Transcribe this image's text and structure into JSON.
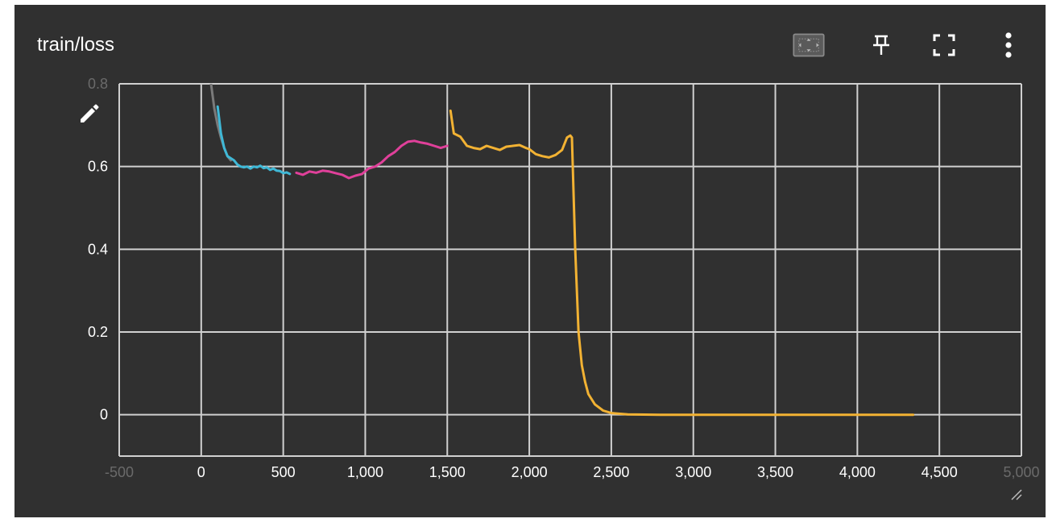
{
  "card": {
    "title": "train/loss"
  },
  "toolbar": {
    "buttons": [
      {
        "name": "fit-domain-button",
        "icon": "fit-domain-icon"
      },
      {
        "name": "pin-button",
        "icon": "pin-icon"
      },
      {
        "name": "fullscreen-button",
        "icon": "fullscreen-icon"
      },
      {
        "name": "more-options-button",
        "icon": "more-vert-icon"
      }
    ]
  },
  "colors": {
    "card_bg": "#303030",
    "grid": "#d0d0d0",
    "run_gray": "#7a7a7a",
    "run_cyan": "#3fb8d6",
    "run_pink": "#e0409a",
    "run_orange": "#f2b233"
  },
  "chart_data": {
    "type": "line",
    "title": "train/loss",
    "xlabel": "",
    "ylabel": "",
    "xlim": [
      -500,
      5000
    ],
    "ylim": [
      -0.1,
      0.8
    ],
    "grid": true,
    "x_ticks": [
      "-500",
      "0",
      "500",
      "1,000",
      "1,500",
      "2,000",
      "2,500",
      "3,000",
      "3,500",
      "4,000",
      "4,500",
      "5,000"
    ],
    "y_ticks": [
      "0",
      "0.2",
      "0.4",
      "0.6",
      "0.8"
    ],
    "series": [
      {
        "color": "#7a7a7a",
        "x": [
          60,
          80,
          100,
          120,
          140,
          160,
          180
        ],
        "y": [
          0.8,
          0.74,
          0.7,
          0.67,
          0.645,
          0.625,
          0.615
        ]
      },
      {
        "color": "#3fb8d6",
        "x": [
          100,
          120,
          140,
          160,
          180,
          200,
          220,
          240,
          260,
          280,
          300,
          320,
          340,
          360,
          380,
          400,
          420,
          440,
          460,
          480,
          500,
          520,
          540
        ],
        "y": [
          0.745,
          0.68,
          0.645,
          0.625,
          0.62,
          0.615,
          0.605,
          0.6,
          0.598,
          0.6,
          0.595,
          0.6,
          0.598,
          0.602,
          0.596,
          0.598,
          0.592,
          0.595,
          0.59,
          0.589,
          0.584,
          0.586,
          0.582
        ]
      },
      {
        "color": "#e0409a",
        "x": [
          580,
          620,
          660,
          700,
          740,
          780,
          820,
          860,
          900,
          940,
          980,
          1020,
          1060,
          1100,
          1140,
          1180,
          1220,
          1260,
          1300,
          1340,
          1380,
          1420,
          1460,
          1500
        ],
        "y": [
          0.585,
          0.58,
          0.588,
          0.585,
          0.59,
          0.588,
          0.584,
          0.58,
          0.572,
          0.578,
          0.582,
          0.595,
          0.6,
          0.61,
          0.625,
          0.635,
          0.65,
          0.66,
          0.662,
          0.658,
          0.655,
          0.65,
          0.645,
          0.65
        ]
      },
      {
        "color": "#f2b233",
        "x": [
          1520,
          1540,
          1580,
          1620,
          1660,
          1700,
          1740,
          1780,
          1820,
          1860,
          1900,
          1940,
          1980,
          2000,
          2040,
          2080,
          2120,
          2160,
          2200,
          2230,
          2250,
          2260,
          2280,
          2300,
          2320,
          2340,
          2360,
          2400,
          2450,
          2500,
          2600,
          2800,
          3000,
          3500,
          4000,
          4340
        ],
        "y": [
          0.735,
          0.68,
          0.672,
          0.65,
          0.645,
          0.642,
          0.65,
          0.645,
          0.64,
          0.648,
          0.65,
          0.652,
          0.645,
          0.642,
          0.63,
          0.625,
          0.622,
          0.628,
          0.64,
          0.67,
          0.675,
          0.67,
          0.4,
          0.2,
          0.12,
          0.08,
          0.05,
          0.025,
          0.01,
          0.004,
          0.001,
          0.0,
          0.0,
          0.0,
          0.0,
          0.0
        ]
      }
    ]
  }
}
